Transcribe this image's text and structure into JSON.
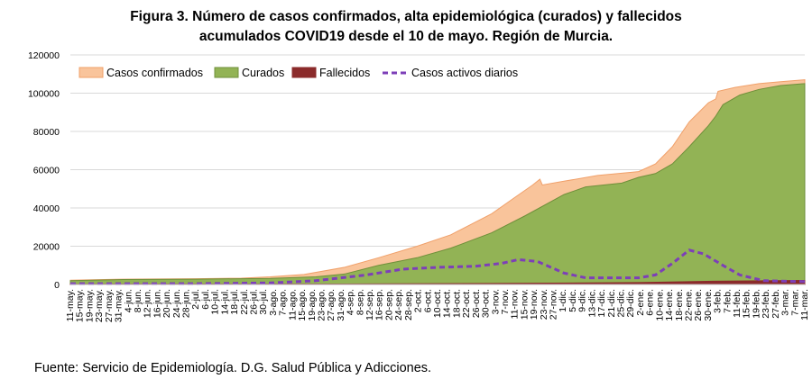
{
  "title_line1": "Figura 3. Número de casos confirmados, alta epidemiológica (curados) y fallecidos",
  "title_line2": "acumulados COVID19 desde el 10 de mayo. Región de Murcia.",
  "source": "Fuente: Servicio de Epidemiología. D.G. Salud Pública y Adicciones.",
  "colors": {
    "confirmados_fill": "#f9c49b",
    "confirmados_line": "#f0a06a",
    "curados_fill": "#92b355",
    "curados_line": "#6f8f3a",
    "fallecidos_fill": "#8b2b2b",
    "activos_line": "#7d3fb8"
  },
  "chart_data": {
    "type": "area",
    "title": "Figura 3. Número de casos confirmados, alta epidemiológica (curados) y fallecidos acumulados COVID19 desde el 10 de mayo. Región de Murcia.",
    "ylim": [
      0,
      120000
    ],
    "yticks": [
      0,
      20000,
      40000,
      60000,
      80000,
      100000,
      120000
    ],
    "grid": true,
    "legend_position": "top-left",
    "x_start": "2020-05-10",
    "x_end": "2021-03-11",
    "x_tick_labels": [
      "11-may.",
      "15-may.",
      "19-may.",
      "23-may.",
      "27-may.",
      "31-may.",
      "4-jun.",
      "8-jun.",
      "12-jun.",
      "16-jun.",
      "20-jun.",
      "24-jun.",
      "28-jun.",
      "2-jul.",
      "6-jul.",
      "10-jul.",
      "14-jul.",
      "18-jul.",
      "22-jul.",
      "26-jul.",
      "30-jul.",
      "3-ago.",
      "7-ago.",
      "11-ago.",
      "15-ago.",
      "19-ago.",
      "23-ago.",
      "27-ago.",
      "31-ago.",
      "4-sep.",
      "8-sep.",
      "12-sep.",
      "16-sep.",
      "20-sep.",
      "24-sep.",
      "28-sep.",
      "2-oct.",
      "6-oct.",
      "10-oct.",
      "14-oct.",
      "18-oct.",
      "22-oct.",
      "26-oct.",
      "30-oct.",
      "3-nov.",
      "7-nov.",
      "11-nov.",
      "15-nov.",
      "19-nov.",
      "23-nov.",
      "27-nov.",
      "1-dic.",
      "5-dic.",
      "9-dic.",
      "13-dic.",
      "17-dic.",
      "21-dic.",
      "25-dic.",
      "29-dic.",
      "2-ene.",
      "6-ene.",
      "10-ene.",
      "14-ene.",
      "18-ene.",
      "22-ene.",
      "26-ene.",
      "30-ene.",
      "3-feb.",
      "7-feb.",
      "11-feb.",
      "15-feb.",
      "19-feb.",
      "23-feb.",
      "27-feb.",
      "3-mar.",
      "7-mar.",
      "11-mar."
    ],
    "series": [
      {
        "name": "Casos confirmados",
        "style": "area",
        "points": [
          [
            "2020-05-10",
            2200
          ],
          [
            "2020-06-01",
            2800
          ],
          [
            "2020-07-01",
            3000
          ],
          [
            "2020-07-20",
            3300
          ],
          [
            "2020-08-01",
            4000
          ],
          [
            "2020-08-15",
            5200
          ],
          [
            "2020-09-01",
            9000
          ],
          [
            "2020-09-15",
            14000
          ],
          [
            "2020-10-01",
            20000
          ],
          [
            "2020-10-15",
            26000
          ],
          [
            "2020-11-01",
            37000
          ],
          [
            "2020-11-10",
            45000
          ],
          [
            "2020-11-18",
            52000
          ],
          [
            "2020-11-21",
            55000
          ],
          [
            "2020-11-22",
            52000
          ],
          [
            "2020-12-01",
            54000
          ],
          [
            "2020-12-15",
            57000
          ],
          [
            "2021-01-01",
            59000
          ],
          [
            "2021-01-08",
            63000
          ],
          [
            "2021-01-15",
            72000
          ],
          [
            "2021-01-22",
            85000
          ],
          [
            "2021-01-30",
            95000
          ],
          [
            "2021-02-02",
            97000
          ],
          [
            "2021-02-03",
            101000
          ],
          [
            "2021-02-10",
            103000
          ],
          [
            "2021-02-20",
            105000
          ],
          [
            "2021-03-01",
            106000
          ],
          [
            "2021-03-11",
            107000
          ]
        ]
      },
      {
        "name": "Curados",
        "style": "area",
        "points": [
          [
            "2020-05-10",
            2000
          ],
          [
            "2020-06-01",
            2600
          ],
          [
            "2020-07-01",
            2800
          ],
          [
            "2020-08-01",
            3200
          ],
          [
            "2020-08-20",
            4000
          ],
          [
            "2020-09-01",
            5500
          ],
          [
            "2020-09-15",
            10000
          ],
          [
            "2020-10-01",
            14000
          ],
          [
            "2020-10-15",
            19000
          ],
          [
            "2020-11-01",
            27000
          ],
          [
            "2020-11-15",
            36000
          ],
          [
            "2020-12-01",
            47000
          ],
          [
            "2020-12-10",
            51000
          ],
          [
            "2020-12-25",
            53000
          ],
          [
            "2021-01-01",
            56000
          ],
          [
            "2021-01-08",
            58000
          ],
          [
            "2021-01-15",
            63000
          ],
          [
            "2021-01-22",
            72000
          ],
          [
            "2021-01-30",
            83000
          ],
          [
            "2021-02-02",
            88000
          ],
          [
            "2021-02-05",
            94000
          ],
          [
            "2021-02-12",
            99000
          ],
          [
            "2021-02-20",
            102000
          ],
          [
            "2021-03-01",
            104000
          ],
          [
            "2021-03-11",
            105000
          ]
        ]
      },
      {
        "name": "Fallecidos",
        "style": "area",
        "points": [
          [
            "2020-05-10",
            150
          ],
          [
            "2020-09-01",
            250
          ],
          [
            "2020-11-01",
            500
          ],
          [
            "2021-01-01",
            1000
          ],
          [
            "2021-02-01",
            1700
          ],
          [
            "2021-03-11",
            2100
          ]
        ]
      },
      {
        "name": "Casos activos diarios",
        "style": "dashed-line",
        "points": [
          [
            "2020-05-10",
            400
          ],
          [
            "2020-07-01",
            400
          ],
          [
            "2020-08-01",
            800
          ],
          [
            "2020-08-20",
            2000
          ],
          [
            "2020-09-10",
            5000
          ],
          [
            "2020-09-25",
            8000
          ],
          [
            "2020-10-10",
            9000
          ],
          [
            "2020-10-25",
            9500
          ],
          [
            "2020-11-05",
            11000
          ],
          [
            "2020-11-12",
            13000
          ],
          [
            "2020-11-20",
            12000
          ],
          [
            "2020-12-01",
            6000
          ],
          [
            "2020-12-10",
            3500
          ],
          [
            "2020-12-20",
            3500
          ],
          [
            "2021-01-01",
            3500
          ],
          [
            "2021-01-08",
            5000
          ],
          [
            "2021-01-15",
            11000
          ],
          [
            "2021-01-22",
            18000
          ],
          [
            "2021-01-28",
            16000
          ],
          [
            "2021-02-05",
            10000
          ],
          [
            "2021-02-12",
            5000
          ],
          [
            "2021-02-22",
            2000
          ],
          [
            "2021-03-11",
            1500
          ]
        ]
      }
    ]
  }
}
